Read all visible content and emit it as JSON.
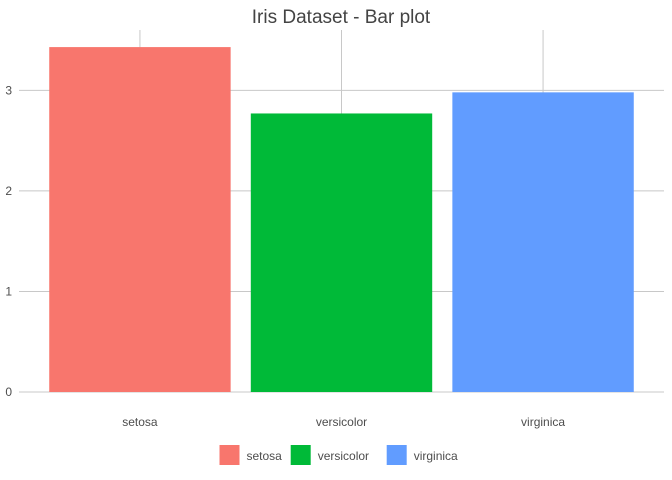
{
  "chart_data": {
    "type": "bar",
    "title": "Iris Dataset - Bar plot",
    "xlabel": "",
    "ylabel": "",
    "categories": [
      "setosa",
      "versicolor",
      "virginica"
    ],
    "values": [
      3.43,
      2.77,
      2.98
    ],
    "colors": [
      "#F8766D",
      "#00BA38",
      "#619CFF"
    ],
    "ylim": [
      0,
      3.6
    ],
    "yticks": [
      0,
      1,
      2,
      3
    ],
    "grid": true,
    "legend": {
      "position": "bottom",
      "entries": [
        "setosa",
        "versicolor",
        "virginica"
      ]
    }
  }
}
